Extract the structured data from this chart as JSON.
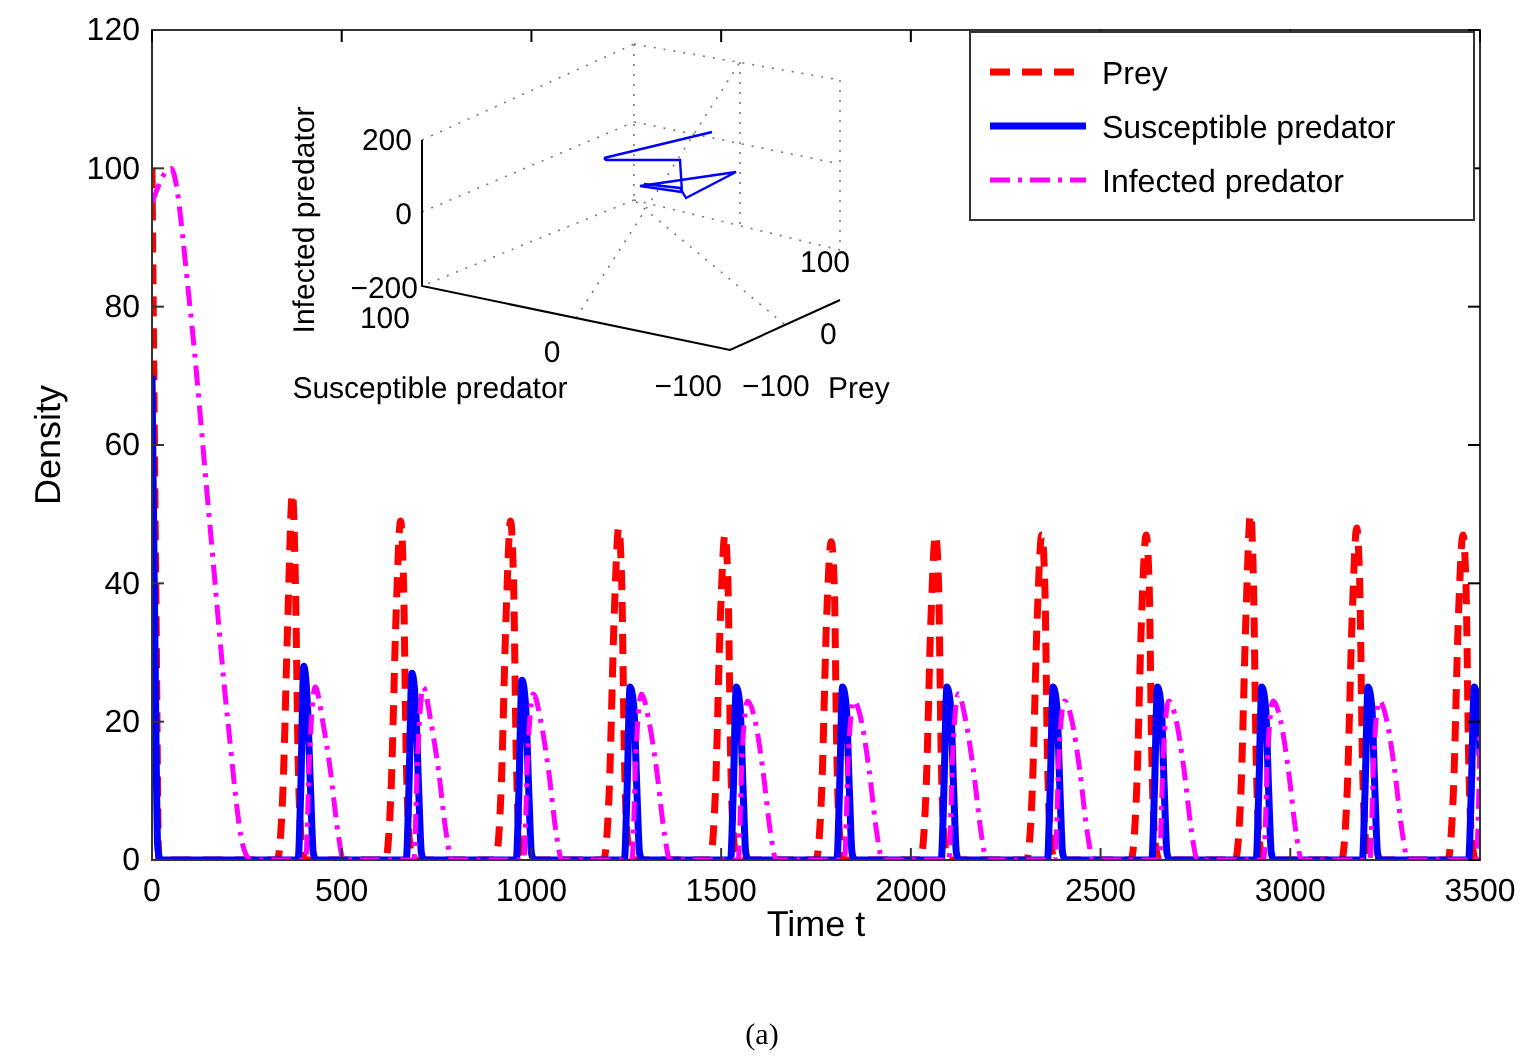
{
  "chart_data": [
    {
      "type": "line",
      "xlabel": "Time t",
      "ylabel": "Density",
      "xlim": [
        0,
        3500
      ],
      "xticks": [
        0,
        500,
        1000,
        1500,
        2000,
        2500,
        3000,
        3500
      ],
      "ylim": [
        0,
        120
      ],
      "yticks": [
        0,
        20,
        40,
        60,
        80,
        100,
        120
      ],
      "grid": false,
      "legend": "top right",
      "marker": "none",
      "annotations": [
        "(a)"
      ],
      "series": [
        {
          "name": "Prey",
          "color": "#ff0000",
          "line_style": "dashed",
          "x": [
            0,
            10,
            18,
            330,
            345,
            358,
            370,
            378,
            385,
            395,
            405,
            615,
            630,
            643,
            655,
            663,
            670,
            680,
            690,
            905,
            920,
            933,
            945,
            953,
            960,
            970,
            980,
            1190,
            1205,
            1218,
            1230,
            1238,
            1245,
            1255,
            1265,
            1470,
            1485,
            1498,
            1510,
            1518,
            1525,
            1535,
            1545,
            1750,
            1765,
            1778,
            1790,
            1798,
            1805,
            1815,
            1825,
            2025,
            2040,
            2053,
            2065,
            2073,
            2080,
            2090,
            2100,
            2305,
            2320,
            2333,
            2345,
            2353,
            2360,
            2370,
            2380,
            2580,
            2595,
            2608,
            2620,
            2628,
            2635,
            2645,
            2655,
            2855,
            2870,
            2883,
            2895,
            2903,
            2910,
            2920,
            2930,
            3135,
            3150,
            3163,
            3175,
            3183,
            3190,
            3200,
            3210,
            3415,
            3430,
            3443,
            3455,
            3463,
            3470,
            3480,
            3490,
            3500
          ],
          "values": [
            100,
            40,
            0,
            0,
            10,
            35,
            53,
            40,
            15,
            2,
            0,
            0,
            10,
            35,
            49,
            40,
            15,
            2,
            0,
            0,
            10,
            35,
            49,
            40,
            15,
            2,
            0,
            0,
            10,
            35,
            48,
            40,
            15,
            2,
            0,
            0,
            10,
            35,
            47,
            40,
            15,
            2,
            0,
            0,
            10,
            35,
            46,
            40,
            15,
            2,
            0,
            0,
            10,
            35,
            47,
            40,
            15,
            2,
            0,
            0,
            10,
            35,
            47,
            40,
            15,
            2,
            0,
            0,
            10,
            35,
            47,
            40,
            15,
            2,
            0,
            0,
            10,
            35,
            50,
            40,
            15,
            2,
            0,
            0,
            10,
            35,
            48,
            40,
            15,
            2,
            0,
            0,
            10,
            35,
            47,
            40,
            15,
            2,
            0,
            0
          ]
        },
        {
          "name": "Susceptible predator",
          "color": "#0000ff",
          "line_style": "solid",
          "x": [
            0,
            8,
            15,
            22,
            385,
            392,
            400,
            410,
            418,
            425,
            432,
            670,
            677,
            685,
            695,
            703,
            710,
            717,
            960,
            967,
            975,
            985,
            993,
            1000,
            1007,
            1245,
            1252,
            1260,
            1270,
            1278,
            1285,
            1292,
            1525,
            1532,
            1540,
            1550,
            1558,
            1565,
            1572,
            1805,
            1812,
            1820,
            1830,
            1838,
            1845,
            1852,
            2080,
            2087,
            2095,
            2105,
            2113,
            2120,
            2127,
            2360,
            2367,
            2375,
            2385,
            2393,
            2400,
            2407,
            2635,
            2642,
            2650,
            2660,
            2668,
            2675,
            2682,
            2910,
            2917,
            2925,
            2935,
            2943,
            2950,
            2957,
            3190,
            3197,
            3205,
            3215,
            3223,
            3230,
            3237,
            3470,
            3477,
            3485,
            3495,
            3500
          ],
          "values": [
            70,
            30,
            2,
            0,
            0,
            10,
            28,
            22,
            10,
            1,
            0,
            0,
            10,
            27,
            22,
            10,
            1,
            0,
            0,
            10,
            26,
            22,
            10,
            1,
            0,
            0,
            10,
            25,
            22,
            10,
            1,
            0,
            0,
            10,
            25,
            22,
            10,
            1,
            0,
            0,
            10,
            25,
            22,
            10,
            1,
            0,
            0,
            10,
            25,
            22,
            10,
            1,
            0,
            0,
            10,
            25,
            22,
            10,
            1,
            0,
            0,
            10,
            25,
            22,
            10,
            1,
            0,
            0,
            10,
            25,
            22,
            10,
            1,
            0,
            0,
            10,
            25,
            22,
            10,
            1,
            0,
            0,
            10,
            25,
            22,
            15
          ]
        },
        {
          "name": "Infected predator",
          "color": "#ff00ff",
          "line_style": "dashdot",
          "x": [
            0,
            50,
            100,
            150,
            200,
            240,
            260,
            405,
            415,
            430,
            450,
            470,
            490,
            505,
            690,
            700,
            715,
            735,
            755,
            775,
            790,
            980,
            990,
            1005,
            1025,
            1045,
            1065,
            1080,
            1265,
            1275,
            1290,
            1310,
            1330,
            1350,
            1365,
            1545,
            1555,
            1570,
            1590,
            1610,
            1630,
            1645,
            1825,
            1835,
            1850,
            1870,
            1890,
            1910,
            1925,
            2100,
            2110,
            2125,
            2145,
            2165,
            2185,
            2200,
            2380,
            2390,
            2405,
            2425,
            2445,
            2465,
            2480,
            2655,
            2665,
            2680,
            2700,
            2720,
            2740,
            2755,
            2930,
            2940,
            2955,
            2975,
            2995,
            3015,
            3030,
            3210,
            3220,
            3235,
            3255,
            3275,
            3295,
            3310,
            3490,
            3500
          ],
          "values": [
            95,
            100,
            80,
            50,
            20,
            2,
            0,
            0,
            15,
            25,
            20,
            13,
            4,
            0,
            0,
            15,
            25,
            20,
            13,
            4,
            0,
            0,
            15,
            24,
            20,
            13,
            4,
            0,
            0,
            15,
            24,
            20,
            13,
            4,
            0,
            0,
            15,
            23,
            20,
            13,
            4,
            0,
            0,
            15,
            23,
            20,
            13,
            4,
            0,
            0,
            15,
            24,
            20,
            13,
            4,
            0,
            0,
            15,
            23,
            20,
            13,
            4,
            0,
            0,
            15,
            23,
            20,
            13,
            4,
            0,
            0,
            15,
            23,
            20,
            13,
            4,
            0,
            0,
            15,
            23,
            20,
            13,
            4,
            0,
            0,
            18
          ]
        }
      ]
    },
    {
      "type": "other",
      "annotations": [
        "Infected predator",
        "Susceptible predator",
        "Prey",
        "200",
        "0",
        "−200",
        "100",
        "0",
        "−100",
        "−100",
        "0",
        "100"
      ]
    }
  ]
}
